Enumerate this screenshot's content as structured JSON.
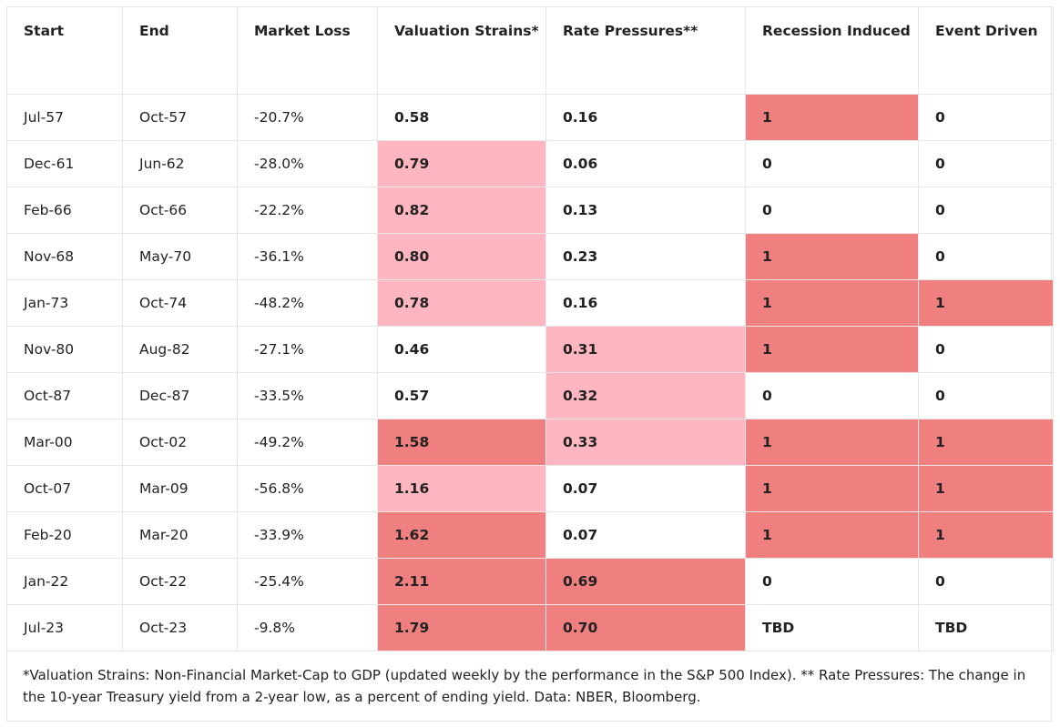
{
  "table": {
    "headers": [
      "Start",
      "End",
      "Market Loss",
      "Valuation Strains*",
      "Rate Pressures**",
      "Recession Induced",
      "Event Driven"
    ],
    "rows": [
      {
        "start": "Jul-57",
        "end": "Oct-57",
        "loss": "-20.7%",
        "valuation": "0.58",
        "rate": "0.16",
        "recession": "1",
        "event": "0",
        "shade": {
          "valuation": "none",
          "rate": "none",
          "recession": "dark",
          "event": "none"
        }
      },
      {
        "start": "Dec-61",
        "end": "Jun-62",
        "loss": "-28.0%",
        "valuation": "0.79",
        "rate": "0.06",
        "recession": "0",
        "event": "0",
        "shade": {
          "valuation": "light",
          "rate": "none",
          "recession": "none",
          "event": "none"
        }
      },
      {
        "start": "Feb-66",
        "end": "Oct-66",
        "loss": "-22.2%",
        "valuation": "0.82",
        "rate": "0.13",
        "recession": "0",
        "event": "0",
        "shade": {
          "valuation": "light",
          "rate": "none",
          "recession": "none",
          "event": "none"
        }
      },
      {
        "start": "Nov-68",
        "end": "May-70",
        "loss": "-36.1%",
        "valuation": "0.80",
        "rate": "0.23",
        "recession": "1",
        "event": "0",
        "shade": {
          "valuation": "light",
          "rate": "none",
          "recession": "dark",
          "event": "none"
        }
      },
      {
        "start": "Jan-73",
        "end": "Oct-74",
        "loss": "-48.2%",
        "valuation": "0.78",
        "rate": "0.16",
        "recession": "1",
        "event": "1",
        "shade": {
          "valuation": "light",
          "rate": "none",
          "recession": "dark",
          "event": "dark"
        }
      },
      {
        "start": "Nov-80",
        "end": "Aug-82",
        "loss": "-27.1%",
        "valuation": "0.46",
        "rate": "0.31",
        "recession": "1",
        "event": "0",
        "shade": {
          "valuation": "none",
          "rate": "light",
          "recession": "dark",
          "event": "none"
        }
      },
      {
        "start": "Oct-87",
        "end": "Dec-87",
        "loss": "-33.5%",
        "valuation": "0.57",
        "rate": "0.32",
        "recession": "0",
        "event": "0",
        "shade": {
          "valuation": "none",
          "rate": "light",
          "recession": "none",
          "event": "none"
        }
      },
      {
        "start": "Mar-00",
        "end": "Oct-02",
        "loss": "-49.2%",
        "valuation": "1.58",
        "rate": "0.33",
        "recession": "1",
        "event": "1",
        "shade": {
          "valuation": "dark",
          "rate": "light",
          "recession": "dark",
          "event": "dark"
        }
      },
      {
        "start": "Oct-07",
        "end": "Mar-09",
        "loss": "-56.8%",
        "valuation": "1.16",
        "rate": "0.07",
        "recession": "1",
        "event": "1",
        "shade": {
          "valuation": "light",
          "rate": "none",
          "recession": "dark",
          "event": "dark"
        }
      },
      {
        "start": "Feb-20",
        "end": "Mar-20",
        "loss": "-33.9%",
        "valuation": "1.62",
        "rate": "0.07",
        "recession": "1",
        "event": "1",
        "shade": {
          "valuation": "dark",
          "rate": "none",
          "recession": "dark",
          "event": "dark"
        }
      },
      {
        "start": "Jan-22",
        "end": "Oct-22",
        "loss": "-25.4%",
        "valuation": "2.11",
        "rate": "0.69",
        "recession": "0",
        "event": "0",
        "shade": {
          "valuation": "dark",
          "rate": "dark",
          "recession": "none",
          "event": "none"
        }
      },
      {
        "start": "Jul-23",
        "end": "Oct-23",
        "loss": "-9.8%",
        "valuation": "1.79",
        "rate": "0.70",
        "recession": "TBD",
        "event": "TBD",
        "shade": {
          "valuation": "dark",
          "rate": "dark",
          "recession": "none",
          "event": "none"
        }
      }
    ]
  },
  "colors": {
    "light_highlight": "#ffb6c1",
    "dark_highlight": "#f08080",
    "border": "#e6e6e6"
  },
  "footnote": "*Valuation Strains: Non-Financial Market-Cap to GDP (updated weekly by the performance in the S&P 500 Index). ** Rate Pressures: The change in the 10-year Treasury yield from a 2-year low, as a percent of ending yield. Data: NBER, Bloomberg."
}
